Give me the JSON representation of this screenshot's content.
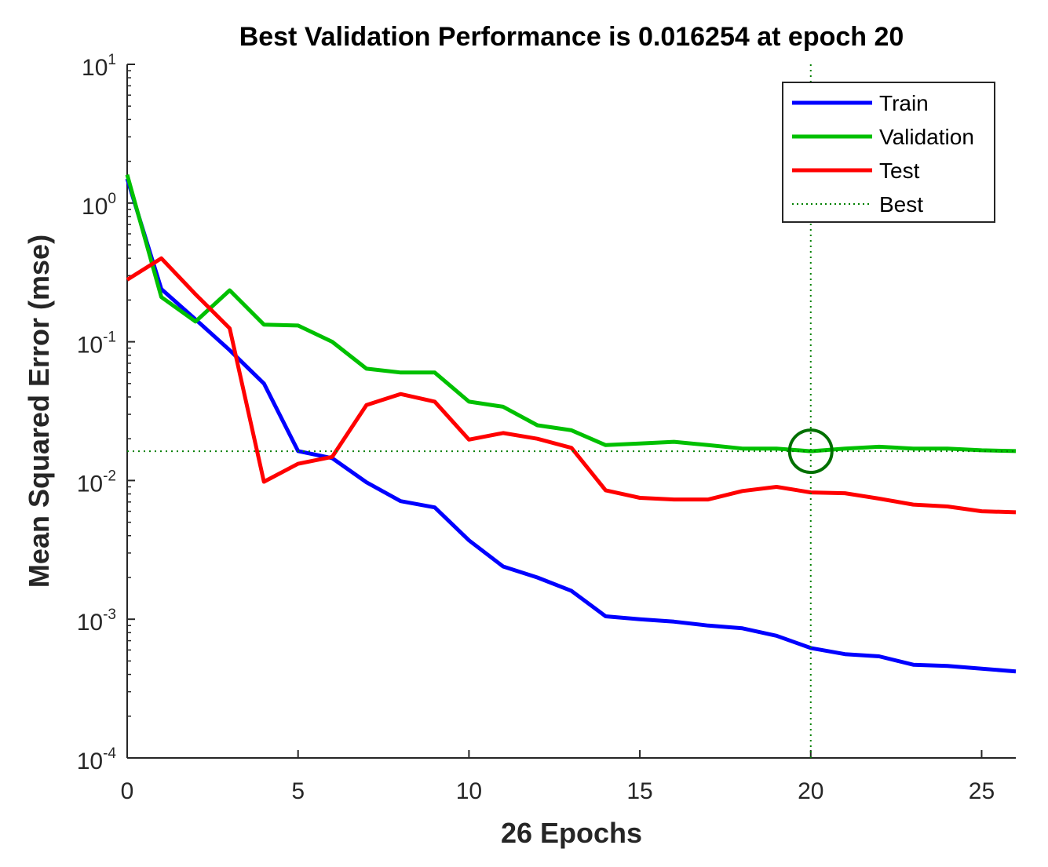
{
  "chart_data": {
    "type": "line",
    "title": "Best Validation Performance is 0.016254 at epoch 20",
    "xlabel": "26 Epochs",
    "ylabel": "Mean Squared Error  (mse)",
    "xlim": [
      0,
      26
    ],
    "ylim": [
      0.0001,
      10
    ],
    "yscale": "log",
    "grid": false,
    "legend_position": "top-right",
    "x_ticks": [
      {
        "value": 0,
        "label": "0"
      },
      {
        "value": 5,
        "label": "5"
      },
      {
        "value": 10,
        "label": "10"
      },
      {
        "value": 15,
        "label": "15"
      },
      {
        "value": 20,
        "label": "20"
      },
      {
        "value": 25,
        "label": "25"
      }
    ],
    "y_ticks": [
      {
        "value": 10,
        "base": "10",
        "exp": "1"
      },
      {
        "value": 1,
        "base": "10",
        "exp": "0"
      },
      {
        "value": 0.1,
        "base": "10",
        "exp": "-1"
      },
      {
        "value": 0.01,
        "base": "10",
        "exp": "-2"
      },
      {
        "value": 0.001,
        "base": "10",
        "exp": "-3"
      },
      {
        "value": 0.0001,
        "base": "10",
        "exp": "-4"
      }
    ],
    "x": [
      0,
      1,
      2,
      3,
      4,
      5,
      6,
      7,
      8,
      9,
      10,
      11,
      12,
      13,
      14,
      15,
      16,
      17,
      18,
      19,
      20,
      21,
      22,
      23,
      24,
      25,
      26
    ],
    "series": [
      {
        "name": "Train",
        "color": "#0000ff",
        "values": [
          1.5,
          0.24,
          0.145,
          0.087,
          0.05,
          0.0163,
          0.0145,
          0.0097,
          0.0071,
          0.0064,
          0.0037,
          0.0024,
          0.002,
          0.0016,
          0.00105,
          0.001,
          0.00096,
          0.0009,
          0.00086,
          0.00076,
          0.00062,
          0.00056,
          0.00054,
          0.00047,
          0.00046,
          0.00044,
          0.00042
        ]
      },
      {
        "name": "Validation",
        "color": "#00c000",
        "values": [
          1.6,
          0.21,
          0.14,
          0.235,
          0.133,
          0.131,
          0.1,
          0.064,
          0.06,
          0.06,
          0.037,
          0.034,
          0.025,
          0.023,
          0.018,
          0.0185,
          0.019,
          0.018,
          0.017,
          0.017,
          0.016254,
          0.017,
          0.0175,
          0.017,
          0.017,
          0.0165,
          0.0163
        ]
      },
      {
        "name": "Test",
        "color": "#ff0000",
        "values": [
          0.28,
          0.4,
          0.22,
          0.125,
          0.0098,
          0.0132,
          0.0148,
          0.035,
          0.042,
          0.037,
          0.0197,
          0.022,
          0.02,
          0.0172,
          0.0085,
          0.0075,
          0.0073,
          0.0073,
          0.0084,
          0.009,
          0.0082,
          0.0081,
          0.0074,
          0.0067,
          0.0065,
          0.006,
          0.0059
        ]
      }
    ],
    "best": {
      "name": "Best",
      "color": "#008000",
      "epoch": 20,
      "value": 0.016254
    }
  }
}
